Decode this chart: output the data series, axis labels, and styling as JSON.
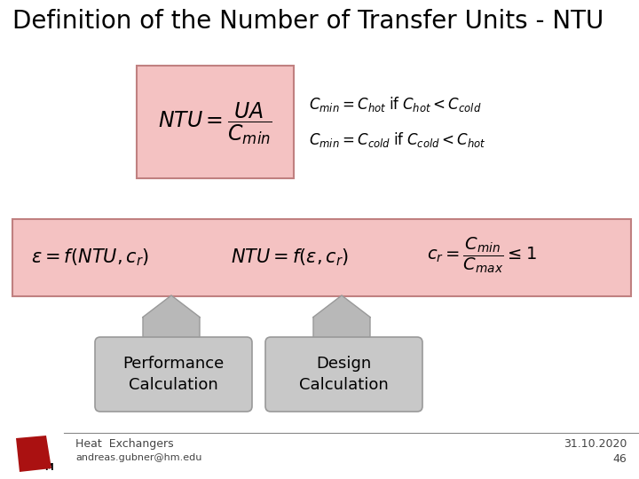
{
  "title": "Definition of the Number of Transfer Units - NTU",
  "title_fontsize": 20,
  "background_color": "#ffffff",
  "pink_box_color": "#f4c2c2",
  "pink_box_border": "#c08080",
  "gray_box_color": "#c8c8c8",
  "gray_box_border": "#999999",
  "arrow_color": "#b8b8b8",
  "footer_line_color": "#888888",
  "footer_text_left": "Heat  Exchangers",
  "footer_text_email": "andreas.gubner@hm.edu",
  "footer_text_date": "31.10.2020",
  "footer_text_page": "46"
}
